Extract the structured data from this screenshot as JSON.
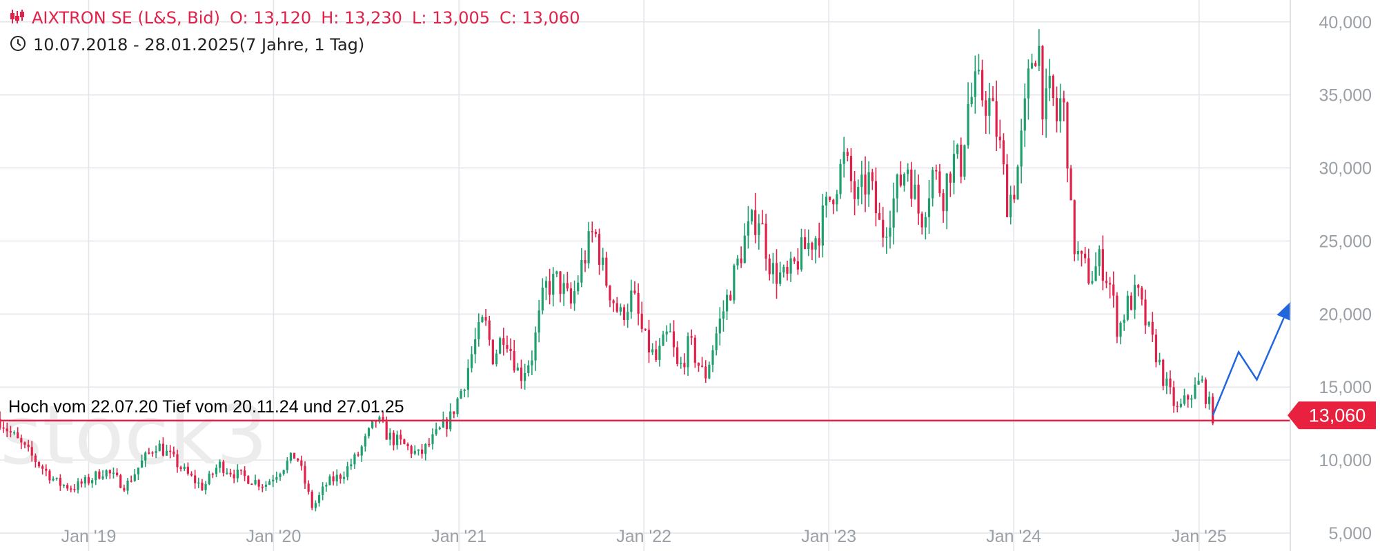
{
  "header": {
    "title": "AIXTRON SE (L&S, Bid)",
    "open": "O: 13,120",
    "high": "H: 13,230",
    "low": "L: 13,005",
    "close": "C: 13,060",
    "range": "10.07.2018 - 28.01.2025",
    "period": "(7 Jahre, 1 Tag)",
    "candle_icon": "candlestick-icon",
    "clock_icon": "clock-icon"
  },
  "chart_data": {
    "type": "candlestick",
    "title": "AIXTRON SE (L&S, Bid)",
    "xlabel": "",
    "ylabel": "",
    "x_range": [
      "2018-07-10",
      "2025-06-30"
    ],
    "ylim": [
      5000,
      41500
    ],
    "grid": true,
    "y_axis_position": "right",
    "y_ticks": [
      "5,000",
      "10,000",
      "15,000",
      "20,000",
      "25,000",
      "30,000",
      "35,000",
      "40,000"
    ],
    "x_ticks": [
      {
        "date": "2019-01-01",
        "label": "Jan '19"
      },
      {
        "date": "2020-01-01",
        "label": "Jan '20"
      },
      {
        "date": "2021-01-01",
        "label": "Jan '21"
      },
      {
        "date": "2022-01-01",
        "label": "Jan '22"
      },
      {
        "date": "2023-01-01",
        "label": "Jan '23"
      },
      {
        "date": "2024-01-01",
        "label": "Jan '24"
      },
      {
        "date": "2025-01-01",
        "label": "Jan '25"
      }
    ],
    "price_path": [
      [
        "2018-07-10",
        12800
      ],
      [
        "2018-08-01",
        11800
      ],
      [
        "2018-09-01",
        10600
      ],
      [
        "2018-10-01",
        9500
      ],
      [
        "2018-11-01",
        8400
      ],
      [
        "2018-12-01",
        8100
      ],
      [
        "2019-01-01",
        8600
      ],
      [
        "2019-02-01",
        9300
      ],
      [
        "2019-03-15",
        8200
      ],
      [
        "2019-04-15",
        9800
      ],
      [
        "2019-05-15",
        11100
      ],
      [
        "2019-06-15",
        10100
      ],
      [
        "2019-07-15",
        9000
      ],
      [
        "2019-08-15",
        8100
      ],
      [
        "2019-09-15",
        9700
      ],
      [
        "2019-10-15",
        9100
      ],
      [
        "2019-11-15",
        8700
      ],
      [
        "2019-12-15",
        8300
      ],
      [
        "2020-01-15",
        9400
      ],
      [
        "2020-02-15",
        10400
      ],
      [
        "2020-03-18",
        6700
      ],
      [
        "2020-04-15",
        8400
      ],
      [
        "2020-05-15",
        9000
      ],
      [
        "2020-06-15",
        10300
      ],
      [
        "2020-07-22",
        12800
      ],
      [
        "2020-08-15",
        11600
      ],
      [
        "2020-09-15",
        11000
      ],
      [
        "2020-10-15",
        10300
      ],
      [
        "2020-11-15",
        11600
      ],
      [
        "2020-12-15",
        12900
      ],
      [
        "2021-01-10",
        15200
      ],
      [
        "2021-02-01",
        18000
      ],
      [
        "2021-02-20",
        19600
      ],
      [
        "2021-03-10",
        17000
      ],
      [
        "2021-04-01",
        18900
      ],
      [
        "2021-05-01",
        15700
      ],
      [
        "2021-05-25",
        17200
      ],
      [
        "2021-06-20",
        21800
      ],
      [
        "2021-07-15",
        22300
      ],
      [
        "2021-08-10",
        20600
      ],
      [
        "2021-09-01",
        23400
      ],
      [
        "2021-09-25",
        25800
      ],
      [
        "2021-10-15",
        22600
      ],
      [
        "2021-11-15",
        19800
      ],
      [
        "2021-12-10",
        21300
      ],
      [
        "2022-01-01",
        18300
      ],
      [
        "2022-01-25",
        16800
      ],
      [
        "2022-02-20",
        18800
      ],
      [
        "2022-03-10",
        16000
      ],
      [
        "2022-04-01",
        18000
      ],
      [
        "2022-05-01",
        15600
      ],
      [
        "2022-05-25",
        18800
      ],
      [
        "2022-06-20",
        21700
      ],
      [
        "2022-07-20",
        25200
      ],
      [
        "2022-08-15",
        26900
      ],
      [
        "2022-09-10",
        23000
      ],
      [
        "2022-10-10",
        22300
      ],
      [
        "2022-11-10",
        24300
      ],
      [
        "2022-12-10",
        25500
      ],
      [
        "2023-01-05",
        28100
      ],
      [
        "2023-02-01",
        30600
      ],
      [
        "2023-02-25",
        27600
      ],
      [
        "2023-03-20",
        29300
      ],
      [
        "2023-04-15",
        25400
      ],
      [
        "2023-05-10",
        27900
      ],
      [
        "2023-06-05",
        30400
      ],
      [
        "2023-07-01",
        26400
      ],
      [
        "2023-07-25",
        29700
      ],
      [
        "2023-08-15",
        28300
      ],
      [
        "2023-09-01",
        30500
      ],
      [
        "2023-09-20",
        30300
      ],
      [
        "2023-10-01",
        34200
      ],
      [
        "2023-10-20",
        35500
      ],
      [
        "2023-11-15",
        34300
      ],
      [
        "2023-12-01",
        32200
      ],
      [
        "2023-12-20",
        27600
      ],
      [
        "2024-01-05",
        29000
      ],
      [
        "2024-01-20",
        32800
      ],
      [
        "2024-02-05",
        37500
      ],
      [
        "2024-02-18",
        39000
      ],
      [
        "2024-03-01",
        33500
      ],
      [
        "2024-03-15",
        35300
      ],
      [
        "2024-03-25",
        33100
      ],
      [
        "2024-04-05",
        35000
      ],
      [
        "2024-04-15",
        32000
      ],
      [
        "2024-04-25",
        25300
      ],
      [
        "2024-05-10",
        23600
      ],
      [
        "2024-06-01",
        22500
      ],
      [
        "2024-06-20",
        23700
      ],
      [
        "2024-07-10",
        21900
      ],
      [
        "2024-07-25",
        18800
      ],
      [
        "2024-08-10",
        20500
      ],
      [
        "2024-09-01",
        21400
      ],
      [
        "2024-09-20",
        19100
      ],
      [
        "2024-10-10",
        17100
      ],
      [
        "2024-10-25",
        15300
      ],
      [
        "2024-11-20",
        13300
      ],
      [
        "2024-12-10",
        14300
      ],
      [
        "2025-01-05",
        15400
      ],
      [
        "2025-01-27",
        13100
      ],
      [
        "2025-01-28",
        13060
      ]
    ],
    "support_line": {
      "value": 12700,
      "label": "Hoch vom 22.07.20 Tief vom 20.11.24 und 27.01.25"
    },
    "last_price_label": "13,060",
    "projection": [
      [
        "2025-01-28",
        13060
      ],
      [
        "2025-03-20",
        17400
      ],
      [
        "2025-04-25",
        15500
      ],
      [
        "2025-06-28",
        20600
      ]
    ],
    "colors": {
      "up": "#1f9e6e",
      "down": "#e0224a",
      "line": "#e0224a",
      "projection": "#2266dd",
      "grid": "#e2e4ea",
      "axis_text": "#9aa0a6"
    }
  }
}
